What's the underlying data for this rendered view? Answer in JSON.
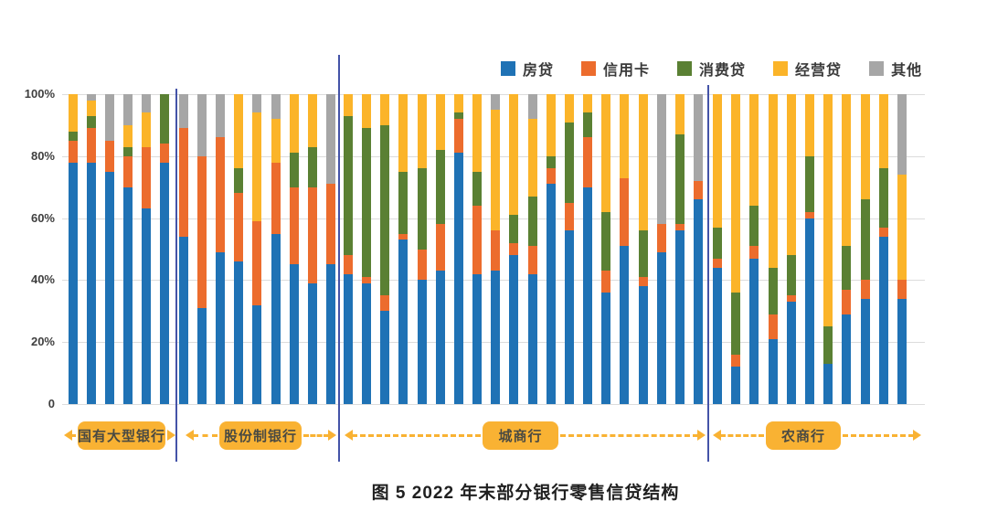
{
  "title": "图 5  2022 年末部分银行零售信贷结构",
  "y_axis": {
    "ticks": [
      "100%",
      "80%",
      "60%",
      "40%",
      "20%",
      "0"
    ]
  },
  "legend": [
    {
      "label": "房贷",
      "color": "#1f72b5"
    },
    {
      "label": "信用卡",
      "color": "#ec6c2d"
    },
    {
      "label": "消费贷",
      "color": "#5a8033"
    },
    {
      "label": "经营贷",
      "color": "#fbb429"
    },
    {
      "label": "其他",
      "color": "#a6a6a6"
    }
  ],
  "chart_data": {
    "type": "bar",
    "stacked": true,
    "unit": "percent of retail credit",
    "ylim": [
      0,
      100
    ],
    "grid": true,
    "legend_position": "top-right",
    "series_names": [
      "房贷",
      "信用卡",
      "消费贷",
      "经营贷",
      "其他"
    ],
    "series_colors": [
      "#1f72b5",
      "#ec6c2d",
      "#5a8033",
      "#fbb429",
      "#a6a6a6"
    ],
    "groups": [
      {
        "label": "国有大型银行",
        "bars": [
          [
            78,
            7,
            3,
            12,
            0
          ],
          [
            78,
            11,
            4,
            5,
            2
          ],
          [
            75,
            10,
            0,
            0,
            15
          ],
          [
            70,
            10,
            3,
            7,
            10
          ],
          [
            63,
            20,
            0,
            11,
            6
          ],
          [
            78,
            6,
            16,
            0,
            0
          ]
        ]
      },
      {
        "label": "股份制银行",
        "bars": [
          [
            54,
            35,
            0,
            0,
            11
          ],
          [
            31,
            49,
            0,
            0,
            20
          ],
          [
            49,
            37,
            0,
            0,
            14
          ],
          [
            46,
            22,
            8,
            24,
            0
          ],
          [
            32,
            27,
            0,
            35,
            6
          ],
          [
            55,
            23,
            0,
            14,
            8
          ],
          [
            45,
            25,
            11,
            19,
            0
          ],
          [
            39,
            31,
            13,
            17,
            0
          ],
          [
            45,
            26,
            0,
            0,
            29
          ]
        ]
      },
      {
        "label": "城商行",
        "bars": [
          [
            42,
            6,
            45,
            7,
            0
          ],
          [
            39,
            2,
            48,
            11,
            0
          ],
          [
            30,
            5,
            55,
            10,
            0
          ],
          [
            53,
            2,
            20,
            25,
            0
          ],
          [
            40,
            10,
            26,
            24,
            0
          ],
          [
            43,
            15,
            24,
            18,
            0
          ],
          [
            81,
            11,
            2,
            6,
            0
          ],
          [
            42,
            22,
            11,
            25,
            0
          ],
          [
            43,
            13,
            0,
            39,
            5
          ],
          [
            48,
            4,
            9,
            39,
            0
          ],
          [
            42,
            9,
            16,
            25,
            8
          ],
          [
            71,
            5,
            4,
            20,
            0
          ],
          [
            56,
            9,
            26,
            9,
            0
          ],
          [
            70,
            16,
            8,
            6,
            0
          ],
          [
            36,
            7,
            19,
            38,
            0
          ],
          [
            51,
            22,
            0,
            27,
            0
          ],
          [
            38,
            3,
            15,
            44,
            0
          ],
          [
            49,
            9,
            0,
            0,
            42
          ],
          [
            56,
            2,
            29,
            13,
            0
          ],
          [
            66,
            6,
            0,
            0,
            28
          ]
        ]
      },
      {
        "label": "农商行",
        "bars": [
          [
            44,
            3,
            10,
            43,
            0
          ],
          [
            12,
            4,
            20,
            64,
            0
          ],
          [
            47,
            4,
            13,
            36,
            0
          ],
          [
            21,
            8,
            15,
            56,
            0
          ],
          [
            33,
            2,
            13,
            52,
            0
          ],
          [
            60,
            2,
            18,
            20,
            0
          ],
          [
            13,
            0,
            12,
            75,
            0
          ],
          [
            29,
            8,
            14,
            49,
            0
          ],
          [
            34,
            6,
            26,
            34,
            0
          ],
          [
            54,
            3,
            19,
            24,
            0
          ],
          [
            34,
            6,
            0,
            34,
            26
          ]
        ]
      }
    ]
  }
}
